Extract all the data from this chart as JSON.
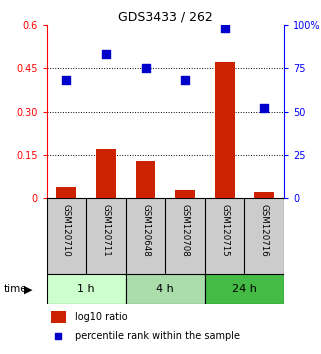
{
  "title": "GDS3433 / 262",
  "samples": [
    "GSM120710",
    "GSM120711",
    "GSM120648",
    "GSM120708",
    "GSM120715",
    "GSM120716"
  ],
  "log10_ratio": [
    0.04,
    0.17,
    0.13,
    0.03,
    0.47,
    0.02
  ],
  "percentile_rank": [
    68,
    83,
    75,
    68,
    98,
    52
  ],
  "left_ylim": [
    0,
    0.6
  ],
  "right_ylim": [
    0,
    100
  ],
  "left_yticks": [
    0,
    0.15,
    0.3,
    0.45,
    0.6
  ],
  "right_yticks": [
    0,
    25,
    50,
    75,
    100
  ],
  "left_yticklabels": [
    "0",
    "0.15",
    "0.30",
    "0.45",
    "0.6"
  ],
  "right_yticklabels": [
    "0",
    "25",
    "50",
    "75",
    "100%"
  ],
  "hlines": [
    0.15,
    0.3,
    0.45
  ],
  "bar_color": "#cc2200",
  "dot_color": "#0000cc",
  "time_groups": [
    {
      "label": "1 h",
      "indices": [
        0,
        1
      ],
      "color": "#ccffcc"
    },
    {
      "label": "4 h",
      "indices": [
        2,
        3
      ],
      "color": "#aaddaa"
    },
    {
      "label": "24 h",
      "indices": [
        4,
        5
      ],
      "color": "#44bb44"
    }
  ],
  "legend_bar_label": "log10 ratio",
  "legend_dot_label": "percentile rank within the sample",
  "xlabel_time": "time",
  "background_color": "#ffffff",
  "bar_width": 0.5,
  "dot_size": 28,
  "label_bg": "#cccccc"
}
